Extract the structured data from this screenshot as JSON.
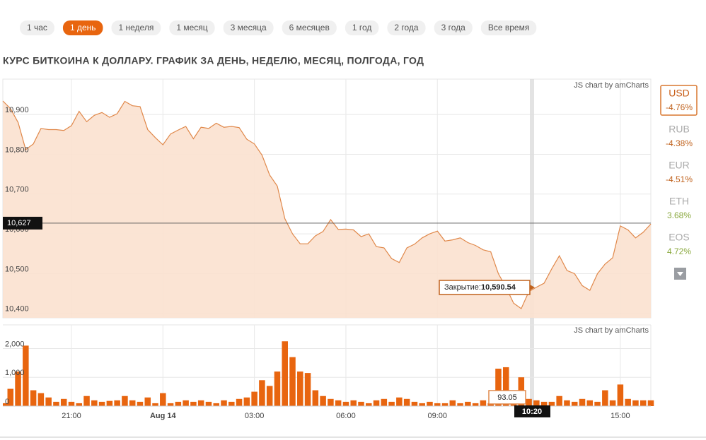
{
  "periods": [
    "1 час",
    "1 день",
    "1 неделя",
    "1 месяц",
    "3 месяца",
    "6 месяцев",
    "1 год",
    "2 года",
    "3 года",
    "Все время"
  ],
  "active_period": 1,
  "title": "КУРС БИТКОИНА К ДОЛЛАРУ. ГРАФИК ЗА ДЕНЬ, НЕДЕЛЮ, МЕСЯЦ, ПОЛГОДА, ГОД",
  "currencies": [
    {
      "code": "USD",
      "change": "-4.76%",
      "active": true
    },
    {
      "code": "RUB",
      "change": "-4.38%"
    },
    {
      "code": "EUR",
      "change": "-4.51%"
    },
    {
      "code": "ETH",
      "change": "3.68%"
    },
    {
      "code": "EOS",
      "change": "4.72%"
    }
  ],
  "chart_data": [
    {
      "type": "area",
      "credit": "JS chart by amCharts",
      "color": "#e0884a",
      "fill": "#fbe1cf",
      "x": [
        18.75,
        19,
        19.25,
        19.5,
        19.75,
        20,
        20.25,
        20.5,
        20.75,
        21,
        21.25,
        21.5,
        21.75,
        22,
        22.25,
        22.5,
        22.75,
        23,
        23.25,
        23.5,
        23.75,
        24,
        24.25,
        24.5,
        24.75,
        25,
        25.25,
        25.5,
        25.75,
        26,
        26.25,
        26.5,
        26.75,
        27,
        27.25,
        27.5,
        27.75,
        28,
        28.25,
        28.5,
        28.75,
        29,
        29.25,
        29.5,
        29.75,
        30,
        30.25,
        30.5,
        30.75,
        31,
        31.25,
        31.5,
        31.75,
        32,
        32.25,
        32.5,
        32.75,
        33,
        33.25,
        33.5,
        33.75,
        34,
        34.25,
        34.5,
        34.75,
        35,
        35.25,
        35.5,
        35.75,
        36,
        36.25,
        36.5,
        36.75,
        37,
        37.25,
        37.5,
        37.75,
        38,
        38.25,
        38.5,
        38.75,
        39,
        39.25,
        39.5,
        39.75,
        40
      ],
      "values": [
        10934,
        10915,
        10880,
        10812,
        10826,
        10865,
        10862,
        10862,
        10860,
        10872,
        10908,
        10882,
        10898,
        10905,
        10893,
        10902,
        10933,
        10922,
        10920,
        10862,
        10842,
        10824,
        10851,
        10861,
        10870,
        10839,
        10868,
        10865,
        10878,
        10868,
        10870,
        10867,
        10838,
        10826,
        10798,
        10748,
        10720,
        10638,
        10600,
        10575,
        10575,
        10595,
        10606,
        10636,
        10611,
        10612,
        10610,
        10593,
        10600,
        10568,
        10565,
        10538,
        10528,
        10565,
        10574,
        10590,
        10600,
        10607,
        10582,
        10585,
        10590,
        10578,
        10571,
        10560,
        10555,
        10500,
        10466,
        10426,
        10412,
        10455,
        10466,
        10476,
        10512,
        10545,
        10508,
        10500,
        10470,
        10458,
        10500,
        10524,
        10540,
        10620,
        10610,
        10590,
        10604,
        10625
      ],
      "xlim": [
        18.75,
        40
      ],
      "ylim": [
        10389,
        10989
      ],
      "yticks": [
        {
          "value": 10400,
          "label": "10,400"
        },
        {
          "value": 10500,
          "label": "10,500"
        },
        {
          "value": 10600,
          "label": "10,600"
        },
        {
          "value": 10700,
          "label": "10,700"
        },
        {
          "value": 10800,
          "label": "10,800"
        },
        {
          "value": 10900,
          "label": "10,900"
        }
      ],
      "guide": {
        "value": 10627,
        "label": "10,627"
      },
      "balloon": {
        "title": "Закрытие:",
        "text": "10,590.54"
      },
      "grid": true
    },
    {
      "type": "bar",
      "credit": "JS chart by amCharts",
      "color": "#e8650f",
      "x": [
        18.75,
        19,
        19.25,
        19.5,
        19.75,
        20,
        20.25,
        20.5,
        20.75,
        21,
        21.25,
        21.5,
        21.75,
        22,
        22.25,
        22.5,
        22.75,
        23,
        23.25,
        23.5,
        23.75,
        24,
        24.25,
        24.5,
        24.75,
        25,
        25.25,
        25.5,
        25.75,
        26,
        26.25,
        26.5,
        26.75,
        27,
        27.25,
        27.5,
        27.75,
        28,
        28.25,
        28.5,
        28.75,
        29,
        29.25,
        29.5,
        29.75,
        30,
        30.25,
        30.5,
        30.75,
        31,
        31.25,
        31.5,
        31.75,
        32,
        32.25,
        32.5,
        32.75,
        33,
        33.25,
        33.5,
        33.75,
        34,
        34.25,
        34.5,
        34.75,
        35,
        35.25,
        35.5,
        35.75,
        36,
        36.25,
        36.5,
        36.75,
        37,
        37.25,
        37.5,
        37.75,
        38,
        38.25,
        38.5,
        38.75,
        39,
        39.25,
        39.5,
        39.75,
        40
      ],
      "values": [
        100,
        600,
        1200,
        2100,
        550,
        450,
        300,
        150,
        250,
        150,
        100,
        350,
        200,
        150,
        180,
        200,
        350,
        200,
        150,
        300,
        100,
        450,
        100,
        150,
        200,
        150,
        200,
        150,
        100,
        200,
        150,
        250,
        300,
        500,
        900,
        700,
        1200,
        2250,
        1700,
        1200,
        1150,
        550,
        350,
        250,
        200,
        150,
        200,
        150,
        100,
        200,
        250,
        150,
        300,
        250,
        150,
        100,
        150,
        100,
        100,
        200,
        100,
        150,
        100,
        200,
        100,
        1300,
        1350,
        200,
        1000,
        250,
        200,
        150,
        150,
        350,
        200,
        150,
        250,
        200,
        150,
        550,
        200,
        750,
        250,
        200,
        200,
        200
      ],
      "xlim": [
        18.75,
        40
      ],
      "ylim": [
        0,
        2820
      ],
      "yticks": [
        0,
        {
          "value": 1000,
          "label": "1,000"
        },
        {
          "value": 2000,
          "label": "2,000"
        }
      ],
      "xticks": [
        {
          "value": 21,
          "label": "21:00"
        },
        {
          "value": 24,
          "label": "Aug 14"
        },
        {
          "value": 27,
          "label": "03:00"
        },
        {
          "value": 30,
          "label": "06:00"
        },
        {
          "value": 33,
          "label": "09:00"
        },
        {
          "value": 39,
          "label": "15:00"
        }
      ],
      "balloon": {
        "text": "93.05"
      },
      "cursor_label": "10:20",
      "grid": true
    }
  ]
}
